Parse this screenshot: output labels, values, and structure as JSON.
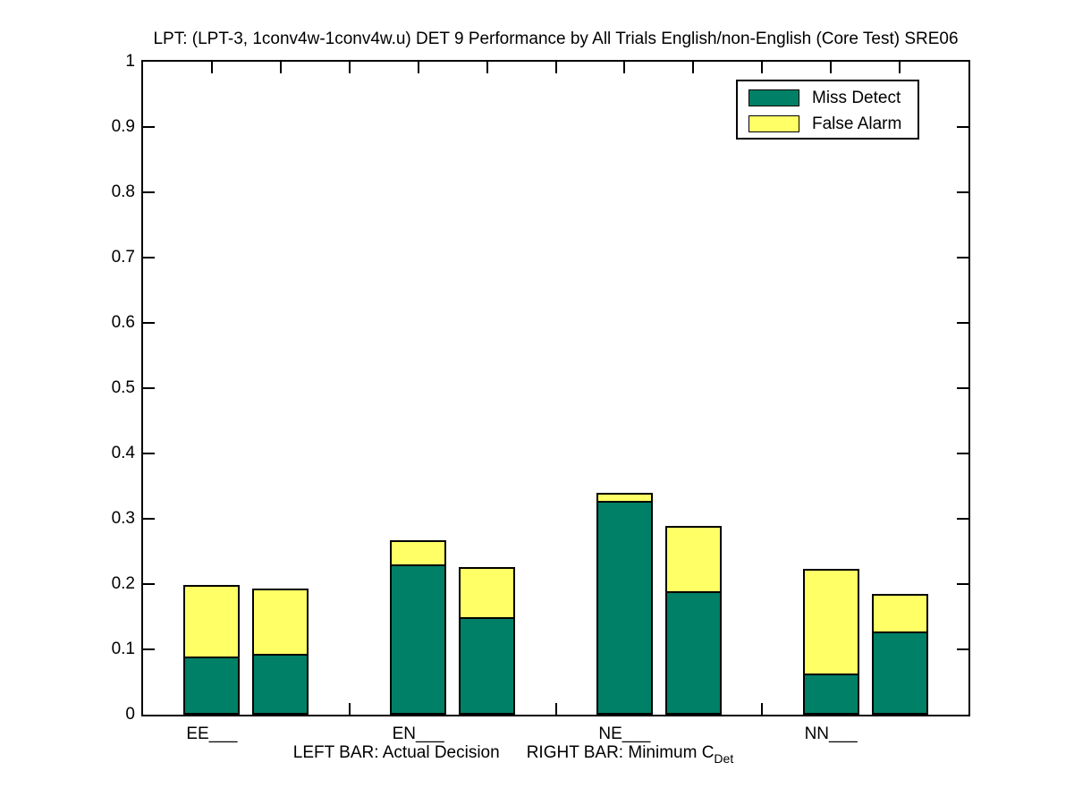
{
  "chart_data": {
    "type": "bar",
    "stacked": true,
    "title": "LPT: (LPT-3, 1conv4w-1conv4w.u) DET 9 Performance by All Trials English/non-English (Core Test) SRE06",
    "categories": [
      "EE___",
      "EN___",
      "NE___",
      "NN___"
    ],
    "legend_position": "top-right",
    "grid": false,
    "ylim": [
      0,
      1
    ],
    "ytick_labels": [
      "0",
      "0.1",
      "0.2",
      "0.3",
      "0.4",
      "0.5",
      "0.6",
      "0.7",
      "0.8",
      "0.9",
      "1"
    ],
    "legend": [
      {
        "label": "Miss Detect",
        "color": "#008066"
      },
      {
        "label": "False Alarm",
        "color": "#ffff66"
      }
    ],
    "bar_pair_meaning": {
      "left": "Actual Decision",
      "right": "Minimum CDet"
    },
    "series": [
      {
        "name": "Miss Detect",
        "left_values": [
          0.087,
          0.227,
          0.324,
          0.06
        ],
        "right_values": [
          0.091,
          0.147,
          0.187,
          0.124
        ]
      },
      {
        "name": "False Alarm",
        "left_values": [
          0.112,
          0.04,
          0.016,
          0.163
        ],
        "right_values": [
          0.102,
          0.079,
          0.102,
          0.061
        ]
      }
    ],
    "xlabel": "LEFT BAR: Actual Decision   RIGHT BAR: Minimum C_Det",
    "xlabel_parts": {
      "left": "LEFT BAR: Actual Decision",
      "right_main": "RIGHT BAR: Minimum C",
      "right_subscript": "Det"
    }
  }
}
